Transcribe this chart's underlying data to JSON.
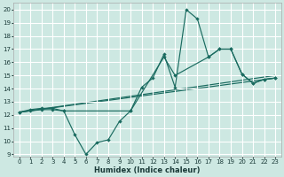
{
  "xlabel": "Humidex (Indice chaleur)",
  "bg_color": "#cde8e2",
  "grid_color": "#ffffff",
  "line_color": "#1a6b60",
  "xlim": [
    -0.5,
    23.5
  ],
  "ylim": [
    8.8,
    20.5
  ],
  "xticks": [
    0,
    1,
    2,
    3,
    4,
    5,
    6,
    7,
    8,
    9,
    10,
    11,
    12,
    13,
    14,
    15,
    16,
    17,
    18,
    19,
    20,
    21,
    22,
    23
  ],
  "yticks": [
    9,
    10,
    11,
    12,
    13,
    14,
    15,
    16,
    17,
    18,
    19,
    20
  ],
  "line1_x": [
    0,
    1,
    2,
    3,
    4,
    5,
    6,
    7,
    8,
    9,
    10,
    11,
    12,
    13,
    14,
    15,
    16,
    17,
    18,
    19,
    20,
    21,
    22,
    23
  ],
  "line1_y": [
    12.2,
    12.4,
    12.5,
    12.5,
    12.3,
    10.5,
    9.0,
    9.9,
    10.1,
    11.5,
    12.3,
    14.1,
    14.8,
    16.6,
    14.1,
    20.0,
    19.3,
    16.4,
    17.0,
    17.0,
    15.1,
    14.4,
    14.7,
    14.8
  ],
  "line2_x": [
    0,
    1,
    2,
    3,
    4,
    10,
    13,
    14,
    17,
    18,
    19,
    20,
    21,
    22,
    23
  ],
  "line2_y": [
    12.2,
    12.3,
    12.4,
    12.4,
    12.3,
    12.3,
    16.4,
    15.0,
    16.4,
    17.0,
    17.0,
    15.1,
    14.4,
    14.7,
    14.8
  ],
  "line3_x": [
    0,
    23
  ],
  "line3_y": [
    12.2,
    15.0
  ],
  "line4_x": [
    0,
    23
  ],
  "line4_y": [
    12.2,
    14.8
  ]
}
